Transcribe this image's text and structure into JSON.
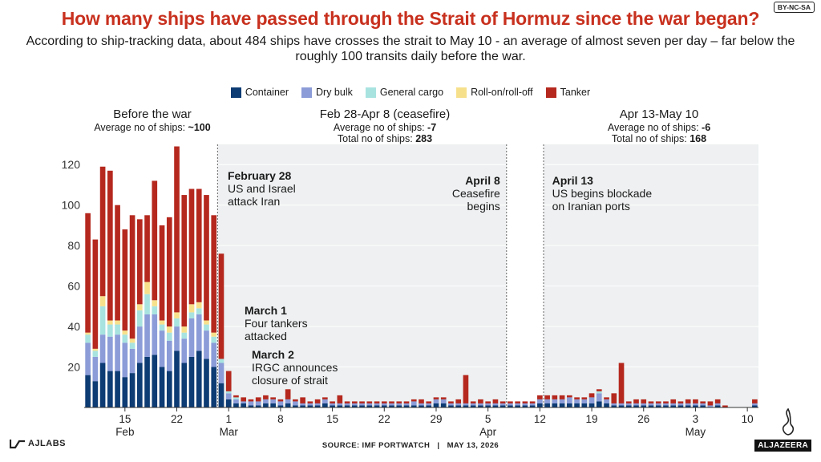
{
  "title": "How many ships have passed through the Strait of Hormuz since the war began?",
  "subtitle": "According to ship-tracking data, about 484 ships have crosses the strait to May 10 - an average of almost seven per day – far below the roughly 100 transits daily before the war.",
  "badge": "BY-NC-SA",
  "legend": [
    {
      "name": "Container",
      "color": "#0d3b73"
    },
    {
      "name": "Dry bulk",
      "color": "#8b9cd8"
    },
    {
      "name": "General cargo",
      "color": "#a8e3e0"
    },
    {
      "name": "Roll-on/roll-off",
      "color": "#f7e08c"
    },
    {
      "name": "Tanker",
      "color": "#b5281e"
    }
  ],
  "periods": {
    "before": {
      "heading": "Before the war",
      "avg_label": "Average no of ships:",
      "avg_value": "~100"
    },
    "p1": {
      "heading": "Feb 28-Apr 8 (ceasefire)",
      "avg_label": "Average no of ships:",
      "avg_value": "-7",
      "total_label": "Total no of ships:",
      "total_value": "283"
    },
    "p2": {
      "heading": "Apr 13-May 10",
      "avg_label": "Average no of ships:",
      "avg_value": "-6",
      "total_label": "Total no of ships:",
      "total_value": "168"
    }
  },
  "annotations": {
    "feb28": {
      "head": "February 28",
      "l1": "US and Israel",
      "l2": "attack Iran"
    },
    "apr8": {
      "head": "April 8",
      "l1": "Ceasefire",
      "l2": "begins"
    },
    "apr13": {
      "head": "April 13",
      "l1": "US begins blockade",
      "l2": "on Iranian ports"
    },
    "mar1": {
      "head": "March 1",
      "l1": "Four tankers",
      "l2": "attacked"
    },
    "mar2": {
      "head": "March 2",
      "l1": "IRGC announces",
      "l2": "closure of strait"
    }
  },
  "footer": {
    "source": "SOURCE:  IMF PORTWATCH",
    "sep": "|",
    "date": "MAY 13, 2026"
  },
  "brand": {
    "left": "AJLABS",
    "right": "ALJAZEERA"
  },
  "chart_data": {
    "type": "bar",
    "stacked": true,
    "ylim": [
      0,
      130
    ],
    "yticks": [
      20,
      40,
      60,
      80,
      100,
      120
    ],
    "start_date": "2026-02-10",
    "x_ticks": [
      {
        "day": 5,
        "label": "15",
        "month": "Feb"
      },
      {
        "day": 12,
        "label": "22",
        "month": ""
      },
      {
        "day": 19,
        "label": "1",
        "month": "Mar"
      },
      {
        "day": 26,
        "label": "8",
        "month": ""
      },
      {
        "day": 33,
        "label": "15",
        "month": ""
      },
      {
        "day": 40,
        "label": "22",
        "month": ""
      },
      {
        "day": 47,
        "label": "29",
        "month": ""
      },
      {
        "day": 54,
        "label": "5",
        "month": "Apr"
      },
      {
        "day": 61,
        "label": "12",
        "month": ""
      },
      {
        "day": 68,
        "label": "19",
        "month": ""
      },
      {
        "day": 75,
        "label": "26",
        "month": ""
      },
      {
        "day": 82,
        "label": "3",
        "month": "May"
      },
      {
        "day": 89,
        "label": "10",
        "month": ""
      }
    ],
    "series": [
      {
        "name": "Container",
        "values": [
          16,
          13,
          22,
          18,
          18,
          15,
          17,
          22,
          25,
          26,
          20,
          18,
          28,
          22,
          25,
          28,
          24,
          20,
          12,
          4,
          2,
          2,
          1,
          1,
          2,
          2,
          1,
          2,
          1,
          1,
          1,
          1,
          2,
          1,
          1,
          1,
          1,
          1,
          1,
          1,
          1,
          1,
          1,
          1,
          1,
          1,
          1,
          2,
          2,
          1,
          1,
          1,
          1,
          1,
          1,
          1,
          1,
          1,
          1,
          1,
          1,
          2,
          2,
          2,
          2,
          2,
          2,
          2,
          2,
          3,
          2,
          1,
          1,
          1,
          1,
          1,
          1,
          1,
          1,
          1,
          1,
          1,
          1,
          1,
          0,
          1,
          0,
          0,
          0,
          0,
          1
        ]
      },
      {
        "name": "Dry bulk",
        "values": [
          16,
          12,
          14,
          17,
          18,
          17,
          12,
          18,
          21,
          20,
          18,
          15,
          12,
          12,
          19,
          18,
          14,
          12,
          10,
          3,
          2,
          1,
          2,
          2,
          2,
          2,
          2,
          2,
          2,
          1,
          1,
          1,
          2,
          1,
          1,
          1,
          1,
          1,
          1,
          1,
          1,
          1,
          1,
          1,
          2,
          1,
          1,
          2,
          2,
          1,
          1,
          1,
          1,
          1,
          1,
          1,
          1,
          1,
          1,
          1,
          1,
          2,
          2,
          2,
          2,
          3,
          2,
          2,
          3,
          4,
          2,
          1,
          1,
          1,
          1,
          1,
          1,
          1,
          1,
          1,
          1,
          1,
          1,
          1,
          1,
          1,
          0,
          0,
          0,
          0,
          1
        ]
      },
      {
        "name": "General cargo",
        "values": [
          4,
          3,
          14,
          6,
          5,
          4,
          3,
          8,
          10,
          4,
          3,
          4,
          4,
          3,
          3,
          3,
          3,
          3,
          2,
          1,
          1,
          0,
          0,
          0,
          0,
          0,
          0,
          0,
          0,
          0,
          0,
          0,
          0,
          0,
          0,
          0,
          0,
          0,
          0,
          0,
          0,
          0,
          0,
          0,
          0,
          0,
          0,
          0,
          0,
          0,
          0,
          0,
          0,
          0,
          0,
          0,
          0,
          0,
          0,
          0,
          0,
          0,
          0,
          0,
          0,
          0,
          0,
          0,
          0,
          1,
          0,
          0,
          0,
          0,
          0,
          0,
          0,
          0,
          0,
          0,
          0,
          0,
          0,
          0,
          0,
          0,
          0,
          0,
          0,
          0,
          0
        ]
      },
      {
        "name": "Roll-on/roll-off",
        "values": [
          1,
          1,
          5,
          2,
          2,
          2,
          2,
          3,
          6,
          3,
          2,
          3,
          3,
          3,
          4,
          3,
          2,
          2,
          0,
          0,
          0,
          0,
          0,
          0,
          0,
          0,
          0,
          0,
          0,
          0,
          0,
          0,
          0,
          0,
          0,
          0,
          0,
          0,
          0,
          0,
          0,
          0,
          0,
          0,
          0,
          0,
          0,
          0,
          0,
          0,
          0,
          0,
          0,
          0,
          0,
          0,
          0,
          0,
          0,
          0,
          0,
          0,
          0,
          0,
          0,
          0,
          0,
          0,
          0,
          0,
          0,
          0,
          0,
          0,
          0,
          0,
          0,
          0,
          0,
          0,
          0,
          0,
          0,
          0,
          0,
          0,
          0,
          0,
          0,
          0,
          0
        ]
      },
      {
        "name": "Tanker",
        "values": [
          59,
          54,
          64,
          74,
          57,
          50,
          61,
          42,
          33,
          59,
          47,
          54,
          82,
          65,
          57,
          56,
          62,
          58,
          52,
          10,
          1,
          2,
          1,
          2,
          2,
          1,
          1,
          5,
          1,
          3,
          1,
          2,
          1,
          1,
          4,
          1,
          1,
          1,
          1,
          1,
          1,
          1,
          1,
          1,
          1,
          2,
          1,
          1,
          1,
          1,
          2,
          14,
          1,
          2,
          1,
          2,
          1,
          1,
          1,
          1,
          1,
          2,
          2,
          2,
          2,
          1,
          1,
          1,
          2,
          1,
          1,
          5,
          20,
          1,
          2,
          2,
          1,
          1,
          1,
          2,
          1,
          2,
          2,
          1,
          2,
          2,
          1,
          0,
          0,
          0,
          2
        ]
      }
    ],
    "markers": [
      {
        "day": 18,
        "label": "February 28"
      },
      {
        "day": 57,
        "label": "April 8"
      },
      {
        "day": 62,
        "label": "April 13"
      }
    ]
  }
}
